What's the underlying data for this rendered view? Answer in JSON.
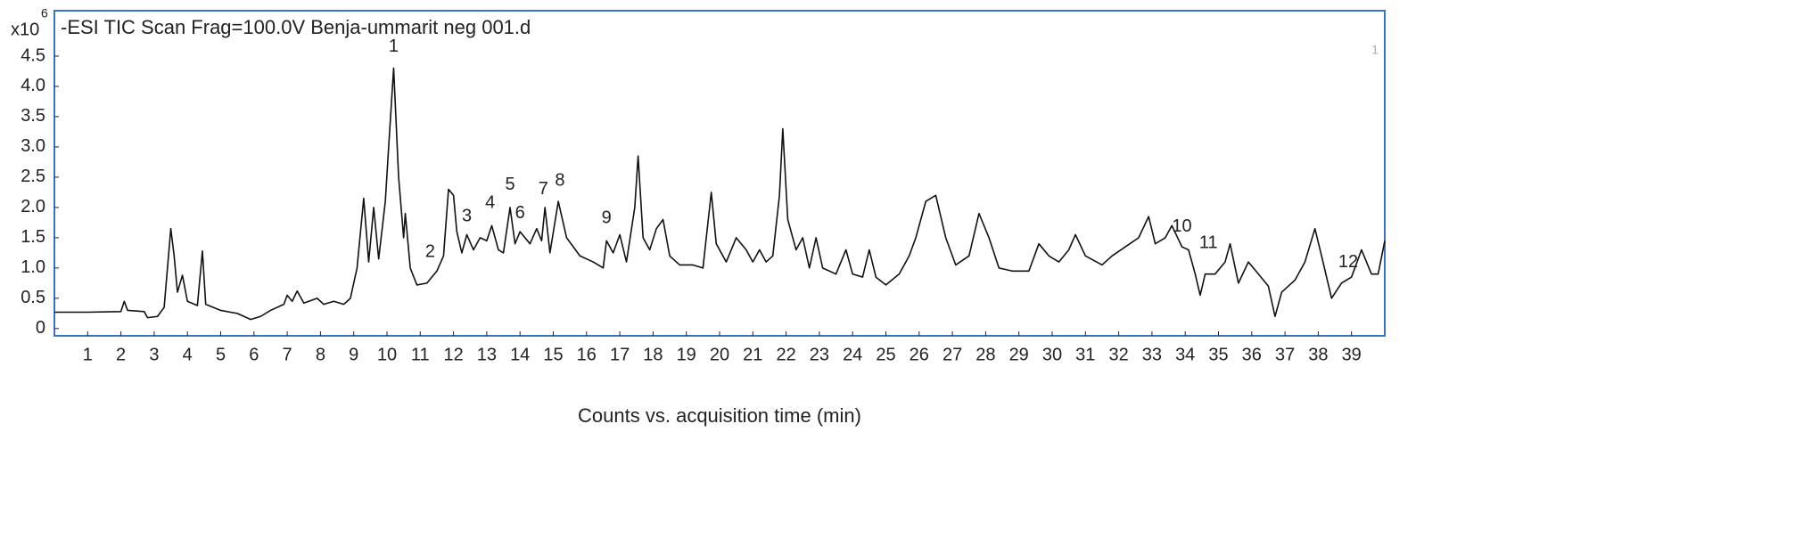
{
  "chart_data": {
    "type": "line",
    "title": "-ESI TIC Scan Frag=100.0V Benja-ummarit neg 001.d",
    "y_multiplier": "x10",
    "y_exponent": "6",
    "trace_label": "1",
    "xlabel": "Counts vs. acquisition time (min)",
    "xlim": [
      0,
      40
    ],
    "ylim": [
      -0.12,
      5.25
    ],
    "xticks": [
      1,
      2,
      3,
      4,
      5,
      6,
      7,
      8,
      9,
      10,
      11,
      12,
      13,
      14,
      15,
      16,
      17,
      18,
      19,
      20,
      21,
      22,
      23,
      24,
      25,
      26,
      27,
      28,
      29,
      30,
      31,
      32,
      33,
      34,
      35,
      36,
      37,
      38,
      39
    ],
    "yticks": [
      0,
      0.5,
      {
        "value": 1,
        "label": "1.0"
      },
      1.5,
      {
        "value": 2,
        "label": "2.0"
      },
      2.5,
      {
        "value": 3,
        "label": "3.0"
      },
      3.5,
      {
        "value": 4,
        "label": "4.0"
      },
      4.5
    ],
    "frame_color": "#3b73c5",
    "series": [
      {
        "color": "#111111",
        "x": [
          0.0,
          1.0,
          2.0,
          2.1,
          2.2,
          2.7,
          2.8,
          3.1,
          3.3,
          3.5,
          3.6,
          3.7,
          3.85,
          4.0,
          4.3,
          4.45,
          4.55,
          5.0,
          5.5,
          5.9,
          6.2,
          6.5,
          6.9,
          7.0,
          7.15,
          7.3,
          7.5,
          7.9,
          8.1,
          8.4,
          8.7,
          8.9,
          9.1,
          9.3,
          9.45,
          9.6,
          9.75,
          9.95,
          10.05,
          10.2,
          10.35,
          10.5,
          10.55,
          10.7,
          10.9,
          11.2,
          11.5,
          11.7,
          11.85,
          12.0,
          12.1,
          12.25,
          12.4,
          12.6,
          12.8,
          13.0,
          13.15,
          13.35,
          13.5,
          13.7,
          13.85,
          14.0,
          14.3,
          14.5,
          14.65,
          14.75,
          14.9,
          15.15,
          15.4,
          15.8,
          16.2,
          16.5,
          16.6,
          16.8,
          17.0,
          17.2,
          17.45,
          17.55,
          17.7,
          17.9,
          18.1,
          18.3,
          18.5,
          18.8,
          19.2,
          19.5,
          19.75,
          19.9,
          20.2,
          20.5,
          20.8,
          21.0,
          21.2,
          21.4,
          21.6,
          21.8,
          21.9,
          22.05,
          22.3,
          22.5,
          22.7,
          22.9,
          23.1,
          23.5,
          23.8,
          24.0,
          24.3,
          24.5,
          24.7,
          25.0,
          25.4,
          25.7,
          25.9,
          26.2,
          26.5,
          26.8,
          27.1,
          27.5,
          27.8,
          28.1,
          28.4,
          28.8,
          29.3,
          29.6,
          29.9,
          30.2,
          30.5,
          30.7,
          31.0,
          31.5,
          31.8,
          32.2,
          32.6,
          32.9,
          33.1,
          33.4,
          33.6,
          33.9,
          34.1,
          34.3,
          34.45,
          34.6,
          34.9,
          35.2,
          35.35,
          35.6,
          35.9,
          36.2,
          36.5,
          36.7,
          36.9,
          37.3,
          37.6,
          37.9,
          38.1,
          38.4,
          38.7,
          39.0,
          39.3,
          39.6,
          39.8,
          40.0
        ],
        "values": [
          0.27,
          0.27,
          0.28,
          0.45,
          0.3,
          0.28,
          0.18,
          0.2,
          0.35,
          1.65,
          1.2,
          0.6,
          0.88,
          0.45,
          0.38,
          1.28,
          0.4,
          0.3,
          0.25,
          0.15,
          0.2,
          0.3,
          0.4,
          0.55,
          0.45,
          0.62,
          0.42,
          0.5,
          0.4,
          0.45,
          0.4,
          0.5,
          1.0,
          2.15,
          1.1,
          2.0,
          1.15,
          2.1,
          3.0,
          4.3,
          2.5,
          1.5,
          1.9,
          1.0,
          0.72,
          0.75,
          0.95,
          1.2,
          2.3,
          2.2,
          1.6,
          1.25,
          1.55,
          1.3,
          1.5,
          1.45,
          1.7,
          1.3,
          1.25,
          2.0,
          1.4,
          1.6,
          1.4,
          1.65,
          1.45,
          2.0,
          1.25,
          2.1,
          1.5,
          1.2,
          1.1,
          1.0,
          1.45,
          1.25,
          1.55,
          1.1,
          2.0,
          2.85,
          1.5,
          1.3,
          1.65,
          1.8,
          1.2,
          1.05,
          1.05,
          1.0,
          2.25,
          1.4,
          1.1,
          1.5,
          1.3,
          1.1,
          1.3,
          1.1,
          1.2,
          2.2,
          3.3,
          1.8,
          1.3,
          1.5,
          1.0,
          1.5,
          1.0,
          0.9,
          1.3,
          0.9,
          0.85,
          1.3,
          0.85,
          0.72,
          0.9,
          1.2,
          1.5,
          2.1,
          2.2,
          1.5,
          1.05,
          1.2,
          1.9,
          1.5,
          1.0,
          0.95,
          0.95,
          1.4,
          1.2,
          1.1,
          1.3,
          1.55,
          1.2,
          1.05,
          1.2,
          1.35,
          1.5,
          1.85,
          1.4,
          1.5,
          1.7,
          1.35,
          1.3,
          0.9,
          0.55,
          0.9,
          0.9,
          1.1,
          1.4,
          0.75,
          1.1,
          0.9,
          0.7,
          0.2,
          0.6,
          0.8,
          1.1,
          1.65,
          1.2,
          0.5,
          0.75,
          0.85,
          1.3,
          0.9,
          0.9,
          1.45
        ]
      }
    ],
    "annotations": [
      {
        "text": "1",
        "x": 10.2,
        "y": 4.65
      },
      {
        "text": "2",
        "x": 11.3,
        "y": 1.26
      },
      {
        "text": "3",
        "x": 12.4,
        "y": 1.85
      },
      {
        "text": "4",
        "x": 13.1,
        "y": 2.07
      },
      {
        "text": "5",
        "x": 13.7,
        "y": 2.37
      },
      {
        "text": "6",
        "x": 14.0,
        "y": 1.9
      },
      {
        "text": "7",
        "x": 14.7,
        "y": 2.3
      },
      {
        "text": "8",
        "x": 15.2,
        "y": 2.44
      },
      {
        "text": "9",
        "x": 16.6,
        "y": 1.82
      },
      {
        "text": "10",
        "x": 33.9,
        "y": 1.68
      },
      {
        "text": "11",
        "x": 34.7,
        "y": 1.41
      },
      {
        "text": "12",
        "x": 38.9,
        "y": 1.09
      }
    ]
  }
}
